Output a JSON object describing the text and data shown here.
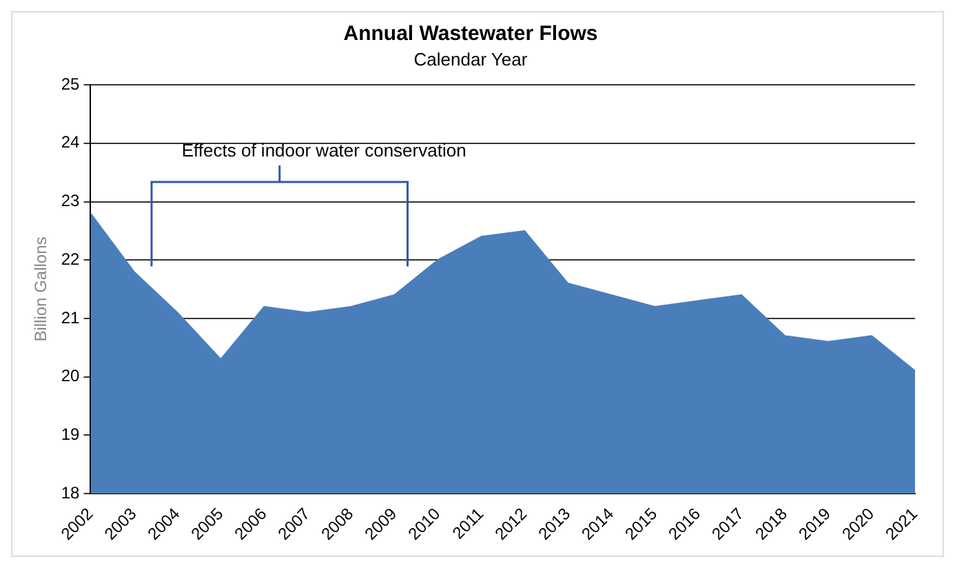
{
  "chart_data": {
    "type": "area",
    "title": "Annual Wastewater Flows",
    "subtitle": "Calendar Year",
    "ylabel": "Billion Gallons",
    "categories": [
      "2002",
      "2003",
      "2004",
      "2005",
      "2006",
      "2007",
      "2008",
      "2009",
      "2010",
      "2011",
      "2012",
      "2013",
      "2014",
      "2015",
      "2016",
      "2017",
      "2018",
      "2019",
      "2020",
      "2021"
    ],
    "series": [
      {
        "color": "#4a7ebb",
        "values": [
          22.8,
          21.8,
          21.1,
          20.3,
          21.2,
          21.1,
          21.2,
          21.4,
          22.0,
          22.4,
          22.5,
          21.6,
          21.4,
          21.2,
          21.3,
          21.4,
          20.7,
          20.6,
          20.7,
          20.1
        ]
      }
    ],
    "ylim": [
      18,
      25
    ],
    "yticks": [
      18,
      19,
      20,
      21,
      22,
      23,
      24,
      25
    ],
    "grid": "y",
    "annotations": [
      "Effects of indoor water conservation"
    ]
  }
}
